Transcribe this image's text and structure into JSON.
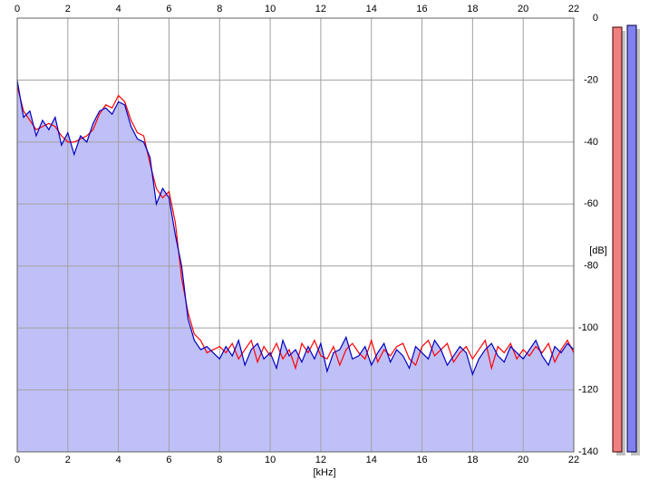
{
  "chart_data": {
    "type": "line",
    "x_label": "[kHz]",
    "y_label": "[dB]",
    "x": [
      0,
      0.25,
      0.5,
      0.75,
      1,
      1.25,
      1.5,
      1.75,
      2,
      2.25,
      2.5,
      2.75,
      3,
      3.25,
      3.5,
      3.75,
      4,
      4.25,
      4.5,
      4.75,
      5,
      5.25,
      5.5,
      5.75,
      6,
      6.25,
      6.5,
      6.75,
      7,
      7.25,
      7.5,
      7.75,
      8,
      8.25,
      8.5,
      8.75,
      9,
      9.25,
      9.5,
      9.75,
      10,
      10.25,
      10.5,
      10.75,
      11,
      11.25,
      11.5,
      11.75,
      12,
      12.25,
      12.5,
      12.75,
      13,
      13.25,
      13.5,
      13.75,
      14,
      14.25,
      14.5,
      14.75,
      15,
      15.25,
      15.5,
      15.75,
      16,
      16.25,
      16.5,
      16.75,
      17,
      17.25,
      17.5,
      17.75,
      18,
      18.25,
      18.5,
      18.75,
      19,
      19.25,
      19.5,
      19.75,
      20,
      20.25,
      20.5,
      20.75,
      21,
      21.25,
      21.5,
      21.75,
      22
    ],
    "series": [
      {
        "color": "#ff0000",
        "values": [
          -22,
          -30,
          -33,
          -36,
          -35,
          -34,
          -35,
          -38,
          -40,
          -40,
          -39,
          -38,
          -36,
          -31,
          -28,
          -29,
          -25,
          -27,
          -33,
          -37,
          -38,
          -47,
          -55,
          -58,
          -56,
          -66,
          -84,
          -95,
          -102,
          -104,
          -108,
          -107,
          -106,
          -108,
          -105,
          -110,
          -107,
          -104,
          -111,
          -106,
          -109,
          -105,
          -110,
          -107,
          -113,
          -105,
          -108,
          -104,
          -109,
          -110,
          -106,
          -112,
          -107,
          -105,
          -108,
          -110,
          -104,
          -111,
          -107,
          -109,
          -106,
          -105,
          -110,
          -112,
          -106,
          -104,
          -109,
          -107,
          -105,
          -111,
          -108,
          -106,
          -110,
          -107,
          -104,
          -113,
          -106,
          -108,
          -105,
          -110,
          -107,
          -109,
          -106,
          -108,
          -105,
          -111,
          -107,
          -104,
          -108
        ]
      },
      {
        "color": "#0000c0",
        "fill": "#c0c0f8",
        "values": [
          -20,
          -32,
          -30,
          -38,
          -33,
          -36,
          -32,
          -41,
          -37,
          -44,
          -38,
          -40,
          -34,
          -30,
          -29,
          -31,
          -27,
          -28,
          -35,
          -39,
          -40,
          -45,
          -60,
          -55,
          -58,
          -70,
          -80,
          -97,
          -104,
          -107,
          -106,
          -108,
          -110,
          -106,
          -109,
          -104,
          -112,
          -107,
          -105,
          -110,
          -108,
          -113,
          -104,
          -109,
          -107,
          -111,
          -106,
          -110,
          -105,
          -114,
          -108,
          -107,
          -103,
          -110,
          -109,
          -106,
          -112,
          -108,
          -105,
          -111,
          -107,
          -109,
          -113,
          -106,
          -108,
          -110,
          -104,
          -107,
          -112,
          -109,
          -106,
          -108,
          -115,
          -110,
          -107,
          -105,
          -109,
          -111,
          -106,
          -108,
          -110,
          -107,
          -104,
          -109,
          -112,
          -106,
          -108,
          -105,
          -107
        ]
      }
    ],
    "xlim": [
      0,
      22
    ],
    "ylim": [
      -140,
      0
    ],
    "xticks": [
      0,
      2,
      4,
      6,
      8,
      10,
      12,
      14,
      16,
      18,
      20,
      22
    ],
    "yticks": [
      0,
      -20,
      -40,
      -60,
      -80,
      -100,
      -120,
      -140
    ],
    "grid": true
  }
}
